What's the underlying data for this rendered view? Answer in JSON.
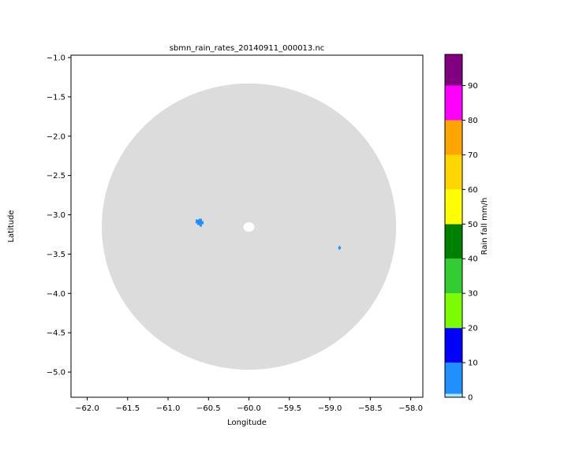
{
  "chart_data": {
    "type": "heatmap",
    "title": "sbmn_rain_rates_20140911_000013.nc",
    "xlabel": "Longitude",
    "ylabel": "Latitude",
    "xlim": [
      -62.2,
      -57.85
    ],
    "ylim": [
      -5.32,
      -0.97
    ],
    "x_ticks": [
      -62.0,
      -61.5,
      -61.0,
      -60.5,
      -60.0,
      -59.5,
      -59.0,
      -58.5,
      -58.0
    ],
    "x_tick_labels": [
      "−62.0",
      "−61.5",
      "−61.0",
      "−60.5",
      "−60.0",
      "−59.5",
      "−59.0",
      "−58.5",
      "−58.0"
    ],
    "y_ticks": [
      -1.0,
      -1.5,
      -2.0,
      -2.5,
      -3.0,
      -3.5,
      -4.0,
      -4.5,
      -5.0
    ],
    "y_tick_labels": [
      "−1.0",
      "−1.5",
      "−2.0",
      "−2.5",
      "−3.0",
      "−3.5",
      "−4.0",
      "−4.5",
      "−5.0"
    ],
    "grid": false,
    "radar_coverage": {
      "center": [
        -60.0,
        -3.15
      ],
      "radius_deg": 1.82,
      "no_rain_color": "#dcdcdc"
    },
    "rain_cells": [
      {
        "lon": -60.62,
        "lat": -3.1,
        "rate": 8
      },
      {
        "lon": -58.88,
        "lat": -3.42,
        "rate": 8
      }
    ],
    "colorbar": {
      "label": "Rain fall mm/h",
      "ticks": [
        0,
        10,
        20,
        30,
        40,
        50,
        60,
        70,
        80,
        90
      ],
      "tick_labels": [
        "0",
        "10",
        "20",
        "30",
        "40",
        "50",
        "60",
        "70",
        "80",
        "90"
      ],
      "levels": [
        {
          "from": 0,
          "to": 1,
          "color": "#aee8ff"
        },
        {
          "from": 1,
          "to": 10,
          "color": "#1e90ff"
        },
        {
          "from": 10,
          "to": 20,
          "color": "#0000ff"
        },
        {
          "from": 20,
          "to": 30,
          "color": "#7cfc00"
        },
        {
          "from": 30,
          "to": 40,
          "color": "#32cd32"
        },
        {
          "from": 40,
          "to": 50,
          "color": "#008000"
        },
        {
          "from": 50,
          "to": 60,
          "color": "#ffff00"
        },
        {
          "from": 60,
          "to": 70,
          "color": "#ffd700"
        },
        {
          "from": 70,
          "to": 80,
          "color": "#ffa500"
        },
        {
          "from": 80,
          "to": 90,
          "color": "#ff00ff"
        },
        {
          "from": 90,
          "to": 99,
          "color": "#800080"
        }
      ],
      "max": 99
    }
  }
}
